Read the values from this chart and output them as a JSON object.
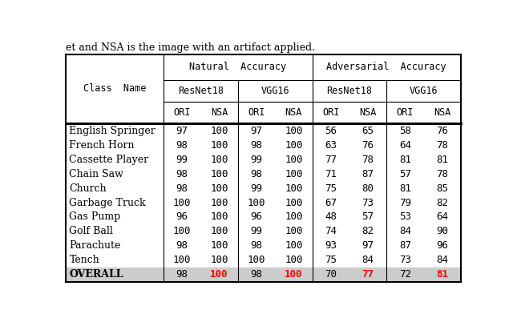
{
  "title_text": "et and NSA is the image with an artifact applied.",
  "rows": [
    {
      "class": "English Springer",
      "vals": [
        97,
        100,
        97,
        100,
        56,
        65,
        58,
        76
      ]
    },
    {
      "class": "French Horn",
      "vals": [
        98,
        100,
        98,
        100,
        63,
        76,
        64,
        78
      ]
    },
    {
      "class": "Cassette Player",
      "vals": [
        99,
        100,
        99,
        100,
        77,
        78,
        81,
        81
      ]
    },
    {
      "class": "Chain Saw",
      "vals": [
        98,
        100,
        98,
        100,
        71,
        87,
        57,
        78
      ]
    },
    {
      "class": "Church",
      "vals": [
        98,
        100,
        99,
        100,
        75,
        80,
        81,
        85
      ]
    },
    {
      "class": "Garbage Truck",
      "vals": [
        100,
        100,
        100,
        100,
        67,
        73,
        79,
        82
      ]
    },
    {
      "class": "Gas Pump",
      "vals": [
        96,
        100,
        96,
        100,
        48,
        57,
        53,
        64
      ]
    },
    {
      "class": "Golf Ball",
      "vals": [
        100,
        100,
        99,
        100,
        74,
        82,
        84,
        90
      ]
    },
    {
      "class": "Parachute",
      "vals": [
        98,
        100,
        98,
        100,
        93,
        97,
        87,
        96
      ]
    },
    {
      "class": "Tench",
      "vals": [
        100,
        100,
        100,
        100,
        75,
        84,
        73,
        84
      ]
    }
  ],
  "overall": {
    "class": "OVERALL",
    "vals": [
      98,
      100,
      98,
      100,
      70,
      77,
      72,
      81
    ]
  },
  "overall_red_cols": [
    1,
    3,
    5,
    7
  ],
  "bg_overall": "#cccccc",
  "header_font": "monospace",
  "data_font": "DejaVu Serif",
  "font_size_title": 9,
  "font_size_header": 8.5,
  "font_size_data": 9
}
